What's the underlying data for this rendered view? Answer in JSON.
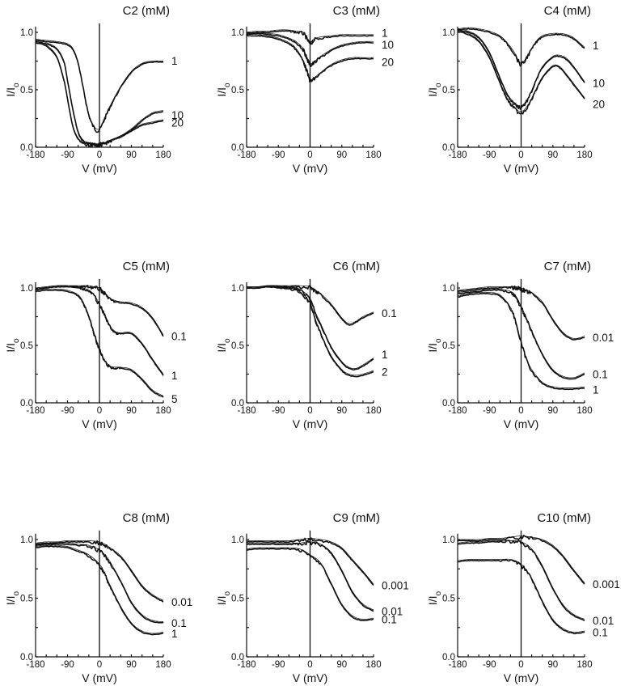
{
  "figure": {
    "description": "Normalized current (I/Io) vs voltage for compounds C2–C10 at different concentrations",
    "background": "#ffffff",
    "ink": "#111111"
  },
  "chart_data": [
    {
      "type": "line",
      "title": "C2 (mM)",
      "xlabel": "V (mV)",
      "ylabel": "I/Io",
      "xlim": [
        -180,
        180
      ],
      "ylim": [
        0,
        1.05
      ],
      "xticks": [
        -180,
        -90,
        0,
        90,
        180
      ],
      "yticks": [
        0.0,
        0.5,
        1.0
      ],
      "xtick_labels": [
        "-180",
        "-90",
        "0",
        "90",
        "180"
      ],
      "ytick_labels": [
        "0.0",
        "0.5",
        "1.0"
      ],
      "x": [
        -180,
        -150,
        -120,
        -100,
        -90,
        -75,
        -60,
        -45,
        -30,
        -15,
        0,
        15,
        30,
        60,
        90,
        120,
        150,
        180
      ],
      "series": [
        {
          "name": "1",
          "values": [
            0.93,
            0.92,
            0.91,
            0.9,
            0.89,
            0.85,
            0.73,
            0.5,
            0.28,
            0.17,
            0.15,
            0.25,
            0.35,
            0.52,
            0.65,
            0.72,
            0.74,
            0.74
          ]
        },
        {
          "name": "10",
          "values": [
            0.92,
            0.9,
            0.85,
            0.74,
            0.58,
            0.33,
            0.13,
            0.05,
            0.03,
            0.02,
            0.02,
            0.03,
            0.05,
            0.09,
            0.15,
            0.23,
            0.29,
            0.31
          ]
        },
        {
          "name": "20",
          "values": [
            0.91,
            0.88,
            0.78,
            0.58,
            0.42,
            0.18,
            0.07,
            0.03,
            0.02,
            0.02,
            0.02,
            0.03,
            0.05,
            0.09,
            0.14,
            0.19,
            0.21,
            0.23
          ]
        }
      ]
    },
    {
      "type": "line",
      "title": "C3 (mM)",
      "xlabel": "V (mV)",
      "ylabel": "I/Io",
      "xlim": [
        -180,
        180
      ],
      "ylim": [
        0,
        1.05
      ],
      "xticks": [
        -180,
        -90,
        0,
        90,
        180
      ],
      "yticks": [
        0.0,
        0.5,
        1.0
      ],
      "xtick_labels": [
        "-180",
        "-90",
        "0",
        "90",
        "180"
      ],
      "ytick_labels": [
        "0.0",
        "0.5",
        "1.0"
      ],
      "x": [
        -180,
        -150,
        -120,
        -90,
        -60,
        -40,
        -20,
        -10,
        0,
        10,
        30,
        60,
        90,
        120,
        150,
        180
      ],
      "series": [
        {
          "name": "1",
          "values": [
            0.99,
            1.0,
            1.0,
            1.01,
            1.01,
            1.0,
            0.99,
            0.95,
            0.9,
            0.93,
            0.95,
            0.96,
            0.97,
            0.97,
            0.97,
            0.97
          ]
        },
        {
          "name": "10",
          "values": [
            0.98,
            0.99,
            0.98,
            0.97,
            0.94,
            0.91,
            0.85,
            0.78,
            0.72,
            0.73,
            0.78,
            0.84,
            0.88,
            0.9,
            0.91,
            0.91
          ]
        },
        {
          "name": "20",
          "values": [
            0.97,
            0.97,
            0.96,
            0.94,
            0.9,
            0.85,
            0.75,
            0.67,
            0.58,
            0.59,
            0.64,
            0.71,
            0.75,
            0.77,
            0.77,
            0.77
          ]
        }
      ]
    },
    {
      "type": "line",
      "title": "C4 (mM)",
      "xlabel": "V (mV)",
      "ylabel": "I/Io",
      "xlim": [
        -180,
        180
      ],
      "ylim": [
        0,
        1.05
      ],
      "xticks": [
        -180,
        -90,
        0,
        90,
        180
      ],
      "yticks": [
        0.0,
        0.5,
        1.0
      ],
      "xtick_labels": [
        "-180",
        "-90",
        "0",
        "90",
        "180"
      ],
      "ytick_labels": [
        "0.0",
        "0.5",
        "1.0"
      ],
      "x": [
        -180,
        -150,
        -120,
        -90,
        -60,
        -40,
        -20,
        0,
        20,
        40,
        60,
        90,
        110,
        130,
        150,
        180
      ],
      "series": [
        {
          "name": "1",
          "values": [
            1.02,
            1.03,
            1.02,
            1.0,
            0.96,
            0.9,
            0.82,
            0.72,
            0.8,
            0.9,
            0.96,
            0.98,
            0.98,
            0.97,
            0.94,
            0.86
          ]
        },
        {
          "name": "10",
          "values": [
            1.02,
            1.0,
            0.95,
            0.82,
            0.6,
            0.46,
            0.38,
            0.35,
            0.42,
            0.56,
            0.69,
            0.78,
            0.79,
            0.76,
            0.69,
            0.56
          ]
        },
        {
          "name": "20",
          "values": [
            1.01,
            0.98,
            0.92,
            0.78,
            0.56,
            0.42,
            0.34,
            0.3,
            0.36,
            0.48,
            0.6,
            0.7,
            0.69,
            0.62,
            0.54,
            0.42
          ]
        }
      ]
    },
    {
      "type": "line",
      "title": "C5 (mM)",
      "xlabel": "V (mV)",
      "ylabel": "I/Io",
      "xlim": [
        -180,
        180
      ],
      "ylim": [
        0,
        1.05
      ],
      "xticks": [
        -180,
        -90,
        0,
        90,
        180
      ],
      "yticks": [
        0.0,
        0.5,
        1.0
      ],
      "xtick_labels": [
        "-180",
        "-90",
        "0",
        "90",
        "180"
      ],
      "ytick_labels": [
        "0.0",
        "0.5",
        "1.0"
      ],
      "x": [
        -180,
        -150,
        -120,
        -90,
        -60,
        -45,
        -30,
        -15,
        0,
        15,
        30,
        45,
        60,
        90,
        120,
        150,
        180
      ],
      "series": [
        {
          "name": "0.1",
          "values": [
            0.99,
            1.0,
            1.01,
            1.01,
            1.01,
            1.01,
            1.01,
            1.0,
            0.99,
            0.95,
            0.9,
            0.88,
            0.87,
            0.86,
            0.82,
            0.73,
            0.58
          ]
        },
        {
          "name": "1",
          "values": [
            0.99,
            1.0,
            1.01,
            1.01,
            1.0,
            0.99,
            0.97,
            0.93,
            0.85,
            0.76,
            0.66,
            0.61,
            0.6,
            0.6,
            0.51,
            0.37,
            0.24
          ]
        },
        {
          "name": "5",
          "values": [
            0.97,
            0.98,
            0.98,
            0.97,
            0.93,
            0.86,
            0.75,
            0.6,
            0.46,
            0.36,
            0.31,
            0.3,
            0.3,
            0.28,
            0.2,
            0.1,
            0.05
          ]
        }
      ]
    },
    {
      "type": "line",
      "title": "C6 (mM)",
      "xlabel": "V (mV)",
      "ylabel": "I/Io",
      "xlim": [
        -180,
        180
      ],
      "ylim": [
        0,
        1.05
      ],
      "xticks": [
        -180,
        -90,
        0,
        90,
        180
      ],
      "yticks": [
        0.0,
        0.5,
        1.0
      ],
      "xtick_labels": [
        "-180",
        "-90",
        "0",
        "90",
        "180"
      ],
      "ytick_labels": [
        "0.0",
        "0.5",
        "1.0"
      ],
      "x": [
        -180,
        -150,
        -120,
        -90,
        -60,
        -30,
        0,
        15,
        30,
        60,
        90,
        110,
        130,
        150,
        180
      ],
      "series": [
        {
          "name": "0.1",
          "values": [
            1.0,
            1.0,
            1.01,
            1.01,
            1.01,
            1.01,
            1.0,
            0.97,
            0.94,
            0.85,
            0.73,
            0.68,
            0.7,
            0.74,
            0.78
          ]
        },
        {
          "name": "1",
          "values": [
            1.0,
            1.0,
            1.01,
            1.01,
            1.0,
            0.98,
            0.9,
            0.78,
            0.68,
            0.48,
            0.35,
            0.3,
            0.29,
            0.32,
            0.38
          ]
        },
        {
          "name": "2",
          "values": [
            1.0,
            1.0,
            1.01,
            1.0,
            0.99,
            0.96,
            0.86,
            0.72,
            0.6,
            0.4,
            0.28,
            0.24,
            0.23,
            0.24,
            0.27
          ]
        }
      ]
    },
    {
      "type": "line",
      "title": "C7 (mM)",
      "xlabel": "V (mV)",
      "ylabel": "I/Io",
      "xlim": [
        -180,
        180
      ],
      "ylim": [
        0,
        1.05
      ],
      "xticks": [
        -180,
        -90,
        0,
        90,
        180
      ],
      "yticks": [
        0.0,
        0.5,
        1.0
      ],
      "xtick_labels": [
        "-180",
        "-90",
        "0",
        "90",
        "180"
      ],
      "ytick_labels": [
        "0.0",
        "0.5",
        "1.0"
      ],
      "x": [
        -180,
        -150,
        -120,
        -90,
        -60,
        -30,
        -15,
        0,
        15,
        30,
        60,
        90,
        120,
        150,
        180
      ],
      "series": [
        {
          "name": "0.01",
          "values": [
            0.97,
            0.98,
            0.99,
            1.0,
            1.0,
            1.0,
            1.0,
            0.99,
            0.97,
            0.95,
            0.87,
            0.72,
            0.6,
            0.55,
            0.57
          ]
        },
        {
          "name": "0.1",
          "values": [
            0.95,
            0.96,
            0.97,
            0.98,
            0.98,
            0.96,
            0.92,
            0.83,
            0.73,
            0.62,
            0.42,
            0.28,
            0.22,
            0.21,
            0.25
          ]
        },
        {
          "name": "1",
          "values": [
            0.92,
            0.94,
            0.95,
            0.95,
            0.93,
            0.82,
            0.7,
            0.52,
            0.38,
            0.28,
            0.17,
            0.13,
            0.12,
            0.12,
            0.13
          ]
        }
      ]
    },
    {
      "type": "line",
      "title": "C8 (mM)",
      "xlabel": "V (mV)",
      "ylabel": "I/Io",
      "xlim": [
        -180,
        180
      ],
      "ylim": [
        0,
        1.05
      ],
      "xticks": [
        -180,
        -90,
        0,
        90,
        180
      ],
      "yticks": [
        0.0,
        0.5,
        1.0
      ],
      "xtick_labels": [
        "-180",
        "-90",
        "0",
        "90",
        "180"
      ],
      "ytick_labels": [
        "0.0",
        "0.5",
        "1.0"
      ],
      "x": [
        -180,
        -150,
        -120,
        -90,
        -60,
        -30,
        0,
        15,
        30,
        60,
        90,
        120,
        150,
        180
      ],
      "series": [
        {
          "name": "0.01",
          "values": [
            0.96,
            0.97,
            0.97,
            0.98,
            0.98,
            0.98,
            0.97,
            0.95,
            0.92,
            0.85,
            0.73,
            0.6,
            0.52,
            0.47
          ]
        },
        {
          "name": "0.1",
          "values": [
            0.95,
            0.96,
            0.96,
            0.96,
            0.95,
            0.94,
            0.9,
            0.86,
            0.8,
            0.64,
            0.46,
            0.35,
            0.3,
            0.29
          ]
        },
        {
          "name": "1",
          "values": [
            0.93,
            0.94,
            0.94,
            0.93,
            0.9,
            0.86,
            0.78,
            0.7,
            0.6,
            0.42,
            0.28,
            0.21,
            0.19,
            0.2
          ]
        }
      ]
    },
    {
      "type": "line",
      "title": "C9 (mM)",
      "xlabel": "V (mV)",
      "ylabel": "I/Io",
      "xlim": [
        -180,
        180
      ],
      "ylim": [
        0,
        1.05
      ],
      "xticks": [
        -180,
        -90,
        0,
        90,
        180
      ],
      "yticks": [
        0.0,
        0.5,
        1.0
      ],
      "xtick_labels": [
        "-180",
        "-90",
        "0",
        "90",
        "180"
      ],
      "ytick_labels": [
        "0.0",
        "0.5",
        "1.0"
      ],
      "x": [
        -180,
        -150,
        -120,
        -90,
        -60,
        -30,
        0,
        30,
        60,
        90,
        120,
        150,
        180
      ],
      "series": [
        {
          "name": "0.001",
          "values": [
            0.98,
            0.98,
            0.98,
            0.98,
            0.98,
            0.99,
            1.0,
            0.99,
            0.97,
            0.92,
            0.82,
            0.72,
            0.61
          ]
        },
        {
          "name": "0.01",
          "values": [
            0.96,
            0.96,
            0.96,
            0.96,
            0.96,
            0.96,
            0.97,
            0.95,
            0.88,
            0.73,
            0.55,
            0.44,
            0.39
          ]
        },
        {
          "name": "0.1",
          "values": [
            0.91,
            0.92,
            0.92,
            0.92,
            0.92,
            0.91,
            0.86,
            0.79,
            0.62,
            0.44,
            0.34,
            0.31,
            0.32
          ]
        }
      ]
    },
    {
      "type": "line",
      "title": "C10 (mM)",
      "xlabel": "V (mV)",
      "ylabel": "I/Io",
      "xlim": [
        -180,
        180
      ],
      "ylim": [
        0,
        1.05
      ],
      "xticks": [
        -180,
        -90,
        0,
        90,
        180
      ],
      "yticks": [
        0.0,
        0.5,
        1.0
      ],
      "xtick_labels": [
        "-180",
        "-90",
        "0",
        "90",
        "180"
      ],
      "ytick_labels": [
        "0.0",
        "0.5",
        "1.0"
      ],
      "x": [
        -180,
        -150,
        -120,
        -90,
        -60,
        -30,
        0,
        30,
        60,
        90,
        120,
        150,
        180
      ],
      "series": [
        {
          "name": "0.001",
          "values": [
            0.99,
            0.99,
            0.99,
            1.0,
            1.0,
            1.01,
            1.02,
            1.01,
            0.99,
            0.94,
            0.85,
            0.73,
            0.62
          ]
        },
        {
          "name": "0.01",
          "values": [
            0.96,
            0.97,
            0.97,
            0.98,
            0.98,
            0.98,
            0.97,
            0.91,
            0.77,
            0.58,
            0.43,
            0.35,
            0.31
          ]
        },
        {
          "name": "0.1",
          "values": [
            0.81,
            0.82,
            0.82,
            0.82,
            0.82,
            0.82,
            0.78,
            0.66,
            0.47,
            0.31,
            0.23,
            0.2,
            0.21
          ]
        }
      ]
    }
  ]
}
